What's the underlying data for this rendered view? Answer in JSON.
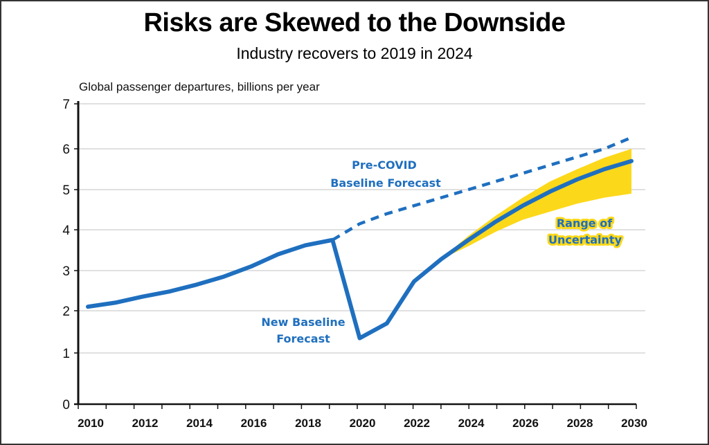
{
  "chart_data": {
    "type": "line",
    "title": "Risks are Skewed to the Downside",
    "subtitle": "Industry recovers to 2019 in 2024",
    "ylabel": "Global passenger departures, billions per year",
    "xlabel": "",
    "ylim": [
      0,
      7
    ],
    "xlim": [
      2010,
      2030
    ],
    "yticks": [
      0,
      1,
      2,
      3,
      4,
      5,
      6,
      7
    ],
    "xtick_labels": [
      "2010",
      "2012",
      "2014",
      "2016",
      "2018",
      "2020",
      "2022",
      "2024",
      "2026",
      "2028",
      "2030"
    ],
    "grid": true,
    "series": [
      {
        "name": "New Baseline Forecast",
        "style": "solid",
        "color": "#1f6fbf",
        "x": [
          2010,
          2011,
          2012,
          2013,
          2014,
          2015,
          2016,
          2017,
          2018,
          2019,
          2020,
          2021,
          2022,
          2023,
          2024,
          2025,
          2026,
          2027,
          2028,
          2029,
          2030
        ],
        "values": [
          2.1,
          2.2,
          2.35,
          2.48,
          2.65,
          2.85,
          3.1,
          3.4,
          3.62,
          3.75,
          1.35,
          1.7,
          2.73,
          3.28,
          3.75,
          4.2,
          4.6,
          4.95,
          5.25,
          5.5,
          5.7
        ]
      },
      {
        "name": "Pre-COVID Baseline Forecast",
        "style": "dashed",
        "color": "#1f6fbf",
        "x": [
          2019,
          2020,
          2021,
          2022,
          2023,
          2024,
          2025,
          2026,
          2027,
          2028,
          2029,
          2030
        ],
        "values": [
          3.75,
          4.15,
          4.4,
          4.6,
          4.8,
          5.0,
          5.2,
          5.4,
          5.6,
          5.8,
          6.0,
          6.25
        ]
      }
    ],
    "band": {
      "name": "Range of Uncertainty",
      "color": "#fcd81a",
      "x": [
        2023,
        2024,
        2025,
        2026,
        2027,
        2028,
        2029,
        2030
      ],
      "upper": [
        3.3,
        3.85,
        4.35,
        4.8,
        5.2,
        5.5,
        5.78,
        6.0
      ],
      "lower": [
        3.28,
        3.6,
        3.95,
        4.25,
        4.45,
        4.65,
        4.8,
        4.9
      ]
    },
    "annotations": {
      "pre_covid": [
        "Pre-COVID",
        "Baseline Forecast"
      ],
      "new_baseline": [
        "New Baseline",
        "Forecast"
      ],
      "range": [
        "Range of",
        "Uncertainty"
      ]
    }
  }
}
